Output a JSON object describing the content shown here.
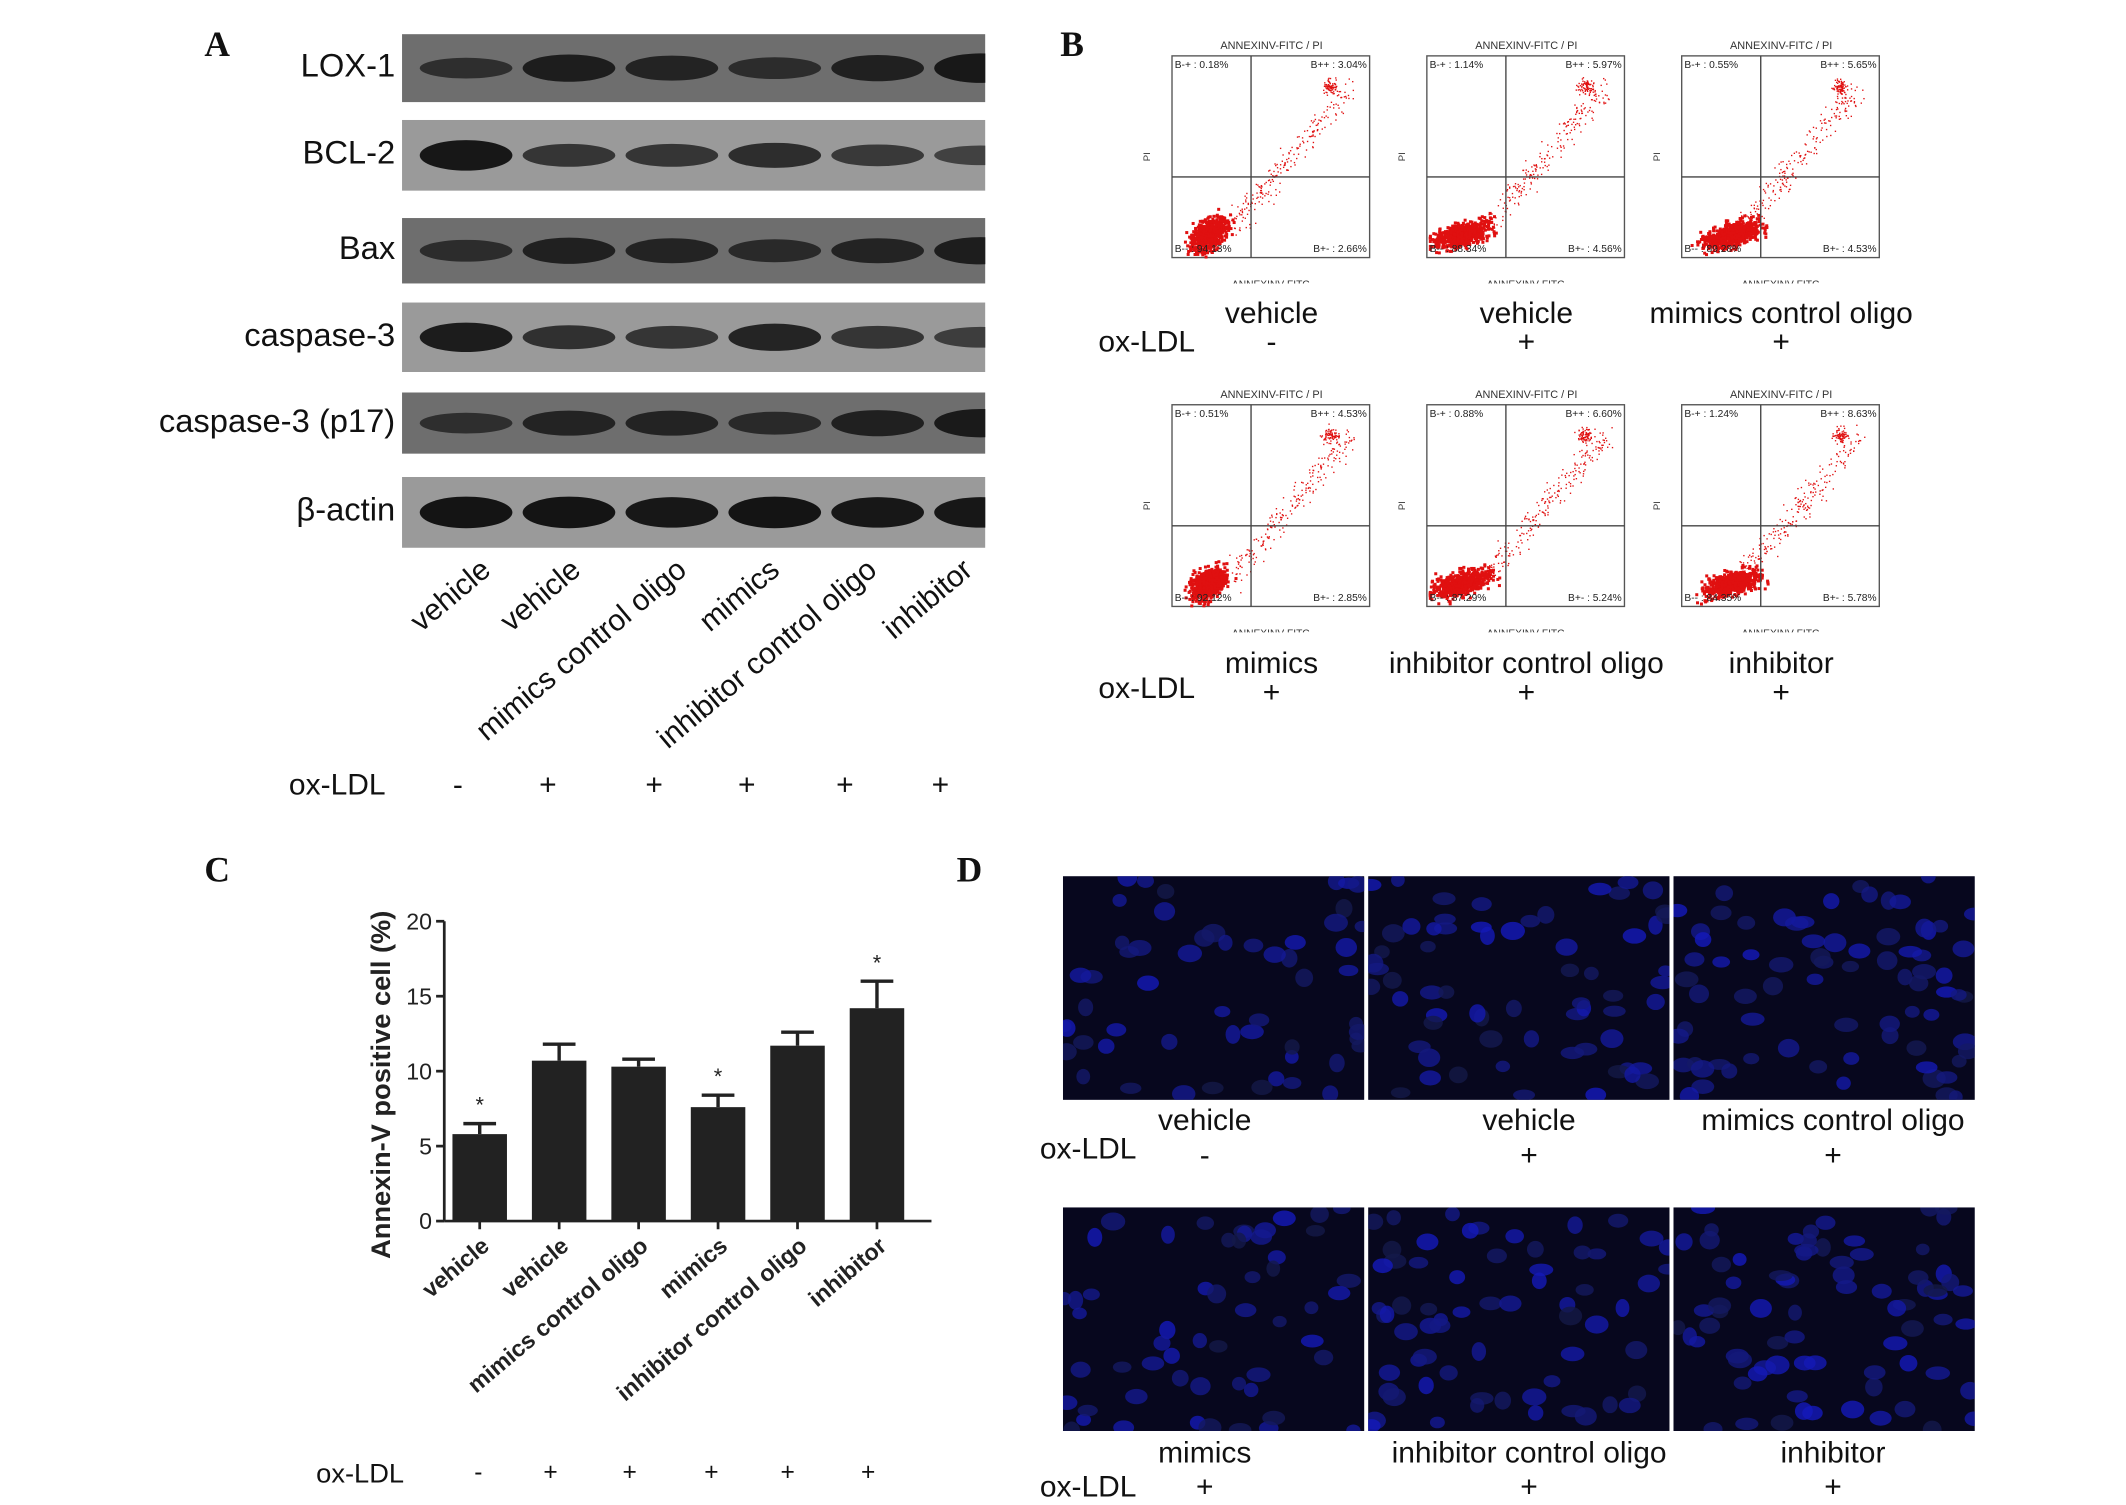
{
  "panel_labels": {
    "a": "A",
    "b": "B",
    "c": "C",
    "d": "D"
  },
  "oxldl_label": "ox-LDL",
  "groups": [
    "vehicle",
    "vehicle",
    "mimics control oligo",
    "mimics",
    "inhibitor control oligo",
    "inhibitor"
  ],
  "oxldl_signs": [
    "-",
    "+",
    "+",
    "+",
    "+",
    "+"
  ],
  "western_blot": {
    "proteins": [
      "LOX-1",
      "BCL-2",
      "Bax",
      "caspase-3",
      "caspase-3 (p17)",
      "β-actin"
    ],
    "band_intensity": [
      [
        0.45,
        0.75,
        0.65,
        0.5,
        0.7,
        0.85
      ],
      [
        0.9,
        0.55,
        0.55,
        0.65,
        0.5,
        0.4
      ],
      [
        0.5,
        0.7,
        0.65,
        0.55,
        0.65,
        0.75
      ],
      [
        0.85,
        0.6,
        0.55,
        0.75,
        0.55,
        0.45
      ],
      [
        0.45,
        0.65,
        0.65,
        0.55,
        0.7,
        0.8
      ],
      [
        0.95,
        0.95,
        0.9,
        0.95,
        0.9,
        0.9
      ]
    ]
  },
  "flow": {
    "title": "ANNEXINV-FITC / PI",
    "xlabel": "ANNEXINV-FITC",
    "ylabel": "PI",
    "plots": [
      {
        "ul": "B-+ : 0.18%",
        "ur": "B++ : 3.04%",
        "ll": "B-- : 94.13%",
        "lr": "B+- : 2.66%"
      },
      {
        "ul": "B-+ : 1.14%",
        "ur": "B++ : 5.97%",
        "ll": "B-- : 88.34%",
        "lr": "B+- : 4.56%"
      },
      {
        "ul": "B-+ : 0.55%",
        "ur": "B++ : 5.65%",
        "ll": "B-- : 89.28%",
        "lr": "B+- : 4.53%"
      },
      {
        "ul": "B-+ : 0.51%",
        "ur": "B++ : 4.53%",
        "ll": "B-- : 92.12%",
        "lr": "B+- : 2.85%"
      },
      {
        "ul": "B-+ : 0.88%",
        "ur": "B++ : 6.60%",
        "ll": "B-- : 87.29%",
        "lr": "B+- : 5.24%"
      },
      {
        "ul": "B-+ : 1.24%",
        "ur": "B++ : 8.63%",
        "ll": "B-- : 84.35%",
        "lr": "B+- : 5.78%"
      }
    ]
  },
  "chart_data": {
    "type": "bar",
    "categories": [
      "vehicle",
      "vehicle",
      "mimics control oligo",
      "mimics",
      "inhibitor control oligo",
      "inhibitor"
    ],
    "values": [
      5.8,
      10.7,
      10.3,
      7.6,
      11.7,
      14.2
    ],
    "errors": [
      0.7,
      1.1,
      0.5,
      0.8,
      0.9,
      1.8
    ],
    "significance": [
      "*",
      "",
      "",
      "*",
      "",
      "*"
    ],
    "ylabel": "Annexin-V positive cell (%)",
    "xlabel": "",
    "ylim": [
      0,
      20
    ],
    "yticks": [
      "0",
      "5",
      "10",
      "15",
      "20"
    ],
    "bar_color": "#222222"
  }
}
